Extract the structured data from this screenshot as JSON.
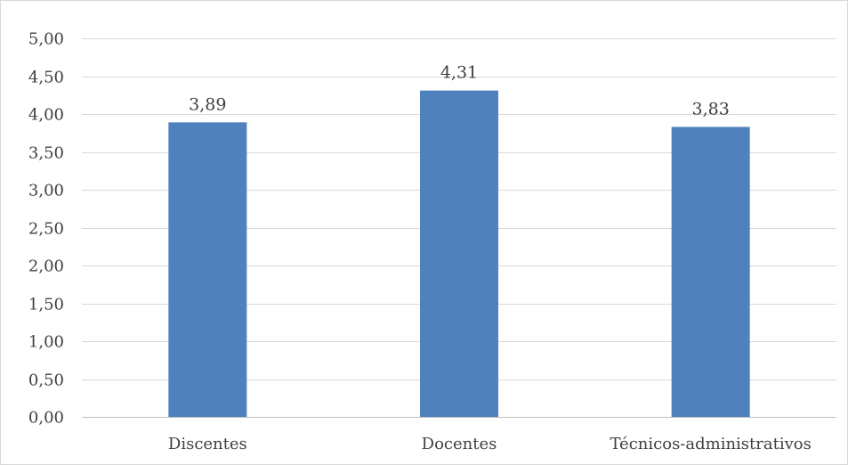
{
  "chart_data": {
    "type": "bar",
    "categories": [
      "Discentes",
      "Docentes",
      "Técnicos-administrativos"
    ],
    "values": [
      3.89,
      4.31,
      3.83
    ],
    "data_labels": [
      "3,89",
      "4,31",
      "3,83"
    ],
    "ylim": [
      0,
      5
    ],
    "yticks": [
      0,
      0.5,
      1,
      1.5,
      2,
      2.5,
      3,
      3.5,
      4,
      4.5,
      5
    ],
    "ytick_labels": [
      "0,00",
      "0,50",
      "1,00",
      "1,50",
      "2,00",
      "2,50",
      "3,00",
      "3,50",
      "4,00",
      "4,50",
      "5,00"
    ],
    "grid": true,
    "legend": false,
    "colors": {
      "bar": "#4f81bd",
      "grid": "#d9d9d9",
      "text": "#404040"
    }
  }
}
